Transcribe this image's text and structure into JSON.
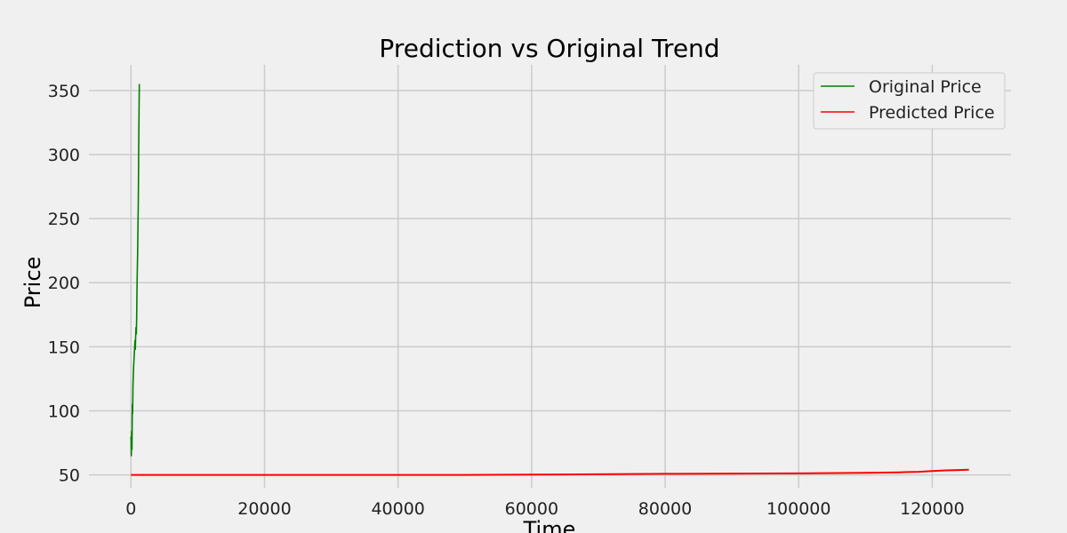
{
  "chart_data": {
    "type": "line",
    "title": "Prediction vs Original Trend",
    "xlabel": "Time",
    "ylabel": "Price",
    "xlim": [
      -6300,
      131800
    ],
    "ylim": [
      40,
      370
    ],
    "xticks": [
      0,
      20000,
      40000,
      60000,
      80000,
      100000,
      120000
    ],
    "yticks": [
      50,
      100,
      150,
      200,
      250,
      300,
      350
    ],
    "grid": true,
    "legend_position": "top-right",
    "series": [
      {
        "name": "Original Price",
        "color": "#008000",
        "x": [
          0,
          50,
          100,
          150,
          200,
          250,
          300,
          350,
          400,
          450,
          500,
          550,
          600,
          650,
          700,
          750,
          800,
          850,
          900,
          950,
          1000,
          1050,
          1100,
          1150,
          1200,
          1250
        ],
        "y": [
          80,
          65,
          84,
          70,
          105,
          98,
          120,
          128,
          135,
          140,
          145,
          150,
          155,
          148,
          158,
          165,
          160,
          172,
          195,
          210,
          225,
          245,
          265,
          300,
          330,
          355
        ]
      },
      {
        "name": "Predicted Price",
        "color": "#ff0000",
        "x": [
          0,
          10000,
          20000,
          30000,
          40000,
          50000,
          60000,
          70000,
          80000,
          90000,
          100000,
          110000,
          115000,
          118000,
          120000,
          122000,
          124000,
          125500
        ],
        "y": [
          50,
          50,
          50,
          50,
          50,
          50,
          50.2,
          50.5,
          50.8,
          51,
          51.2,
          51.6,
          52,
          52.4,
          53,
          53.5,
          53.8,
          54
        ]
      }
    ]
  }
}
